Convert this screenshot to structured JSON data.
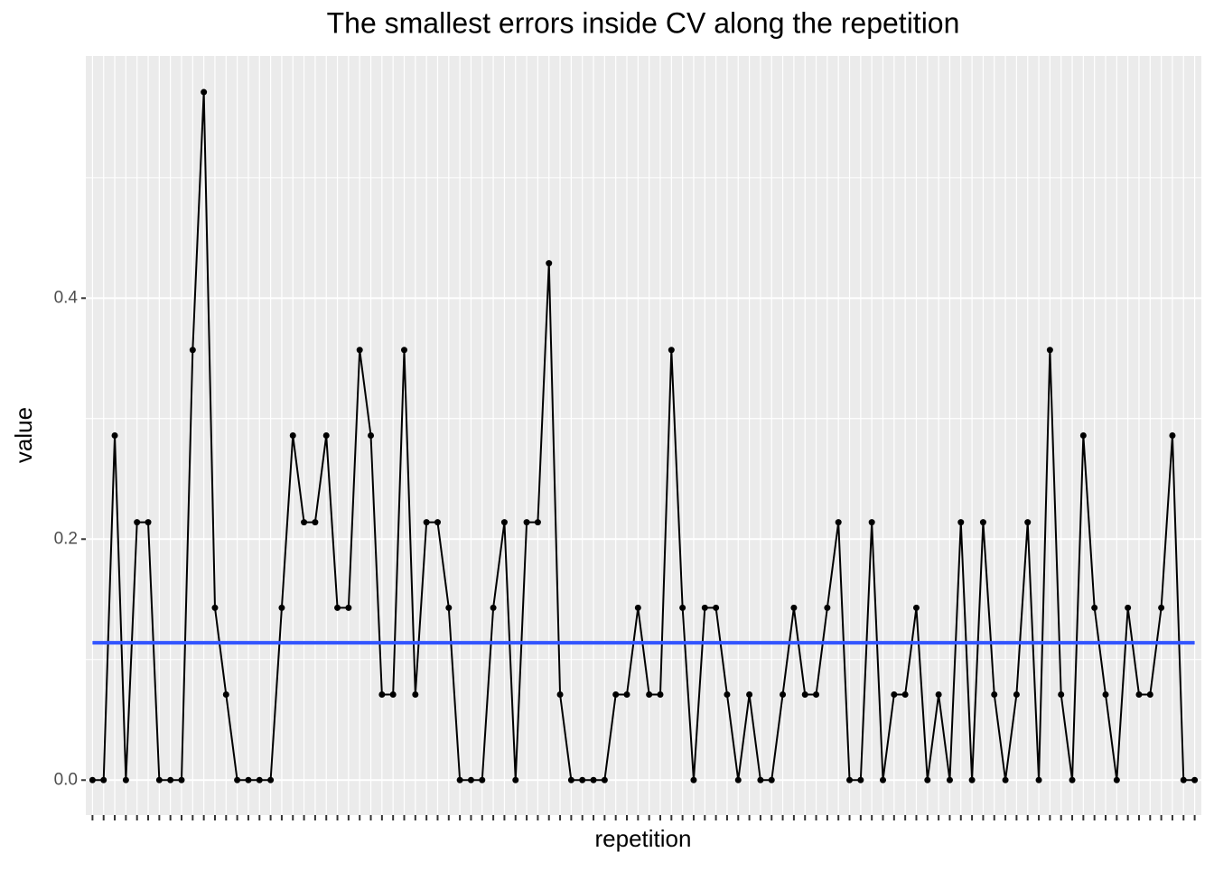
{
  "chart_data": {
    "type": "line",
    "title": "The smallest errors inside CV along the repetition",
    "x_label": "repetition",
    "y_label": "value",
    "categories": [
      null,
      null,
      null,
      null,
      null,
      null,
      null,
      null,
      null,
      null,
      null,
      null,
      null,
      null,
      null,
      null,
      null,
      null,
      null,
      null,
      null,
      null,
      null,
      null,
      null,
      null,
      null,
      null,
      null,
      null,
      null,
      null,
      null,
      null,
      null,
      null,
      null,
      null,
      null,
      null,
      null,
      null,
      null,
      null,
      null,
      null,
      null,
      null,
      null,
      null,
      null,
      null,
      null,
      null,
      null,
      null,
      null,
      null,
      null,
      null,
      null,
      null,
      null,
      null,
      null,
      null,
      null,
      null,
      null,
      null,
      null,
      null,
      null,
      null,
      null,
      null,
      null,
      null,
      null,
      null,
      null,
      null,
      null,
      null,
      null,
      null,
      null,
      null,
      null,
      null,
      null,
      null,
      null,
      null,
      null,
      null,
      null,
      null,
      null,
      null
    ],
    "series": [
      {
        "color": "#000000",
        "values": [
          0,
          0,
          0.286,
          0,
          0.214,
          0.214,
          0,
          0,
          0,
          0.357,
          0.571,
          0.143,
          0.071,
          0,
          0,
          0,
          0,
          0.143,
          0.286,
          0.214,
          0.214,
          0.286,
          0.143,
          0.143,
          0.357,
          0.286,
          0.071,
          0.071,
          0.357,
          0.071,
          0.214,
          0.214,
          0.143,
          0,
          0,
          0,
          0.143,
          0.214,
          0,
          0.214,
          0.214,
          0.429,
          0.071,
          0,
          0,
          0,
          0,
          0.071,
          0.071,
          0.143,
          0.071,
          0.071,
          0.357,
          0.143,
          0,
          0.143,
          0.143,
          0.071,
          0,
          0.071,
          0,
          0,
          0.071,
          0.143,
          0.071,
          0.071,
          0.143,
          0.214,
          0,
          0,
          0.214,
          0,
          0.071,
          0.071,
          0.143,
          0,
          0.071,
          0,
          0.214,
          0,
          0.214,
          0.071,
          0,
          0.071,
          0.214,
          0,
          0.357,
          0.071,
          0,
          0.286,
          0.143,
          0.071,
          0,
          0.143,
          0.071,
          0.071,
          0.143,
          0.286,
          0,
          0
        ]
      }
    ],
    "hline": {
      "value": 0.114,
      "color": "#3355ff"
    },
    "ylim": [
      -0.029,
      0.601
    ],
    "yticks": [
      {
        "value": 0,
        "label": "0.0"
      },
      0.2,
      0.4
    ],
    "grid": true,
    "panel_color": "#ebebeb"
  }
}
